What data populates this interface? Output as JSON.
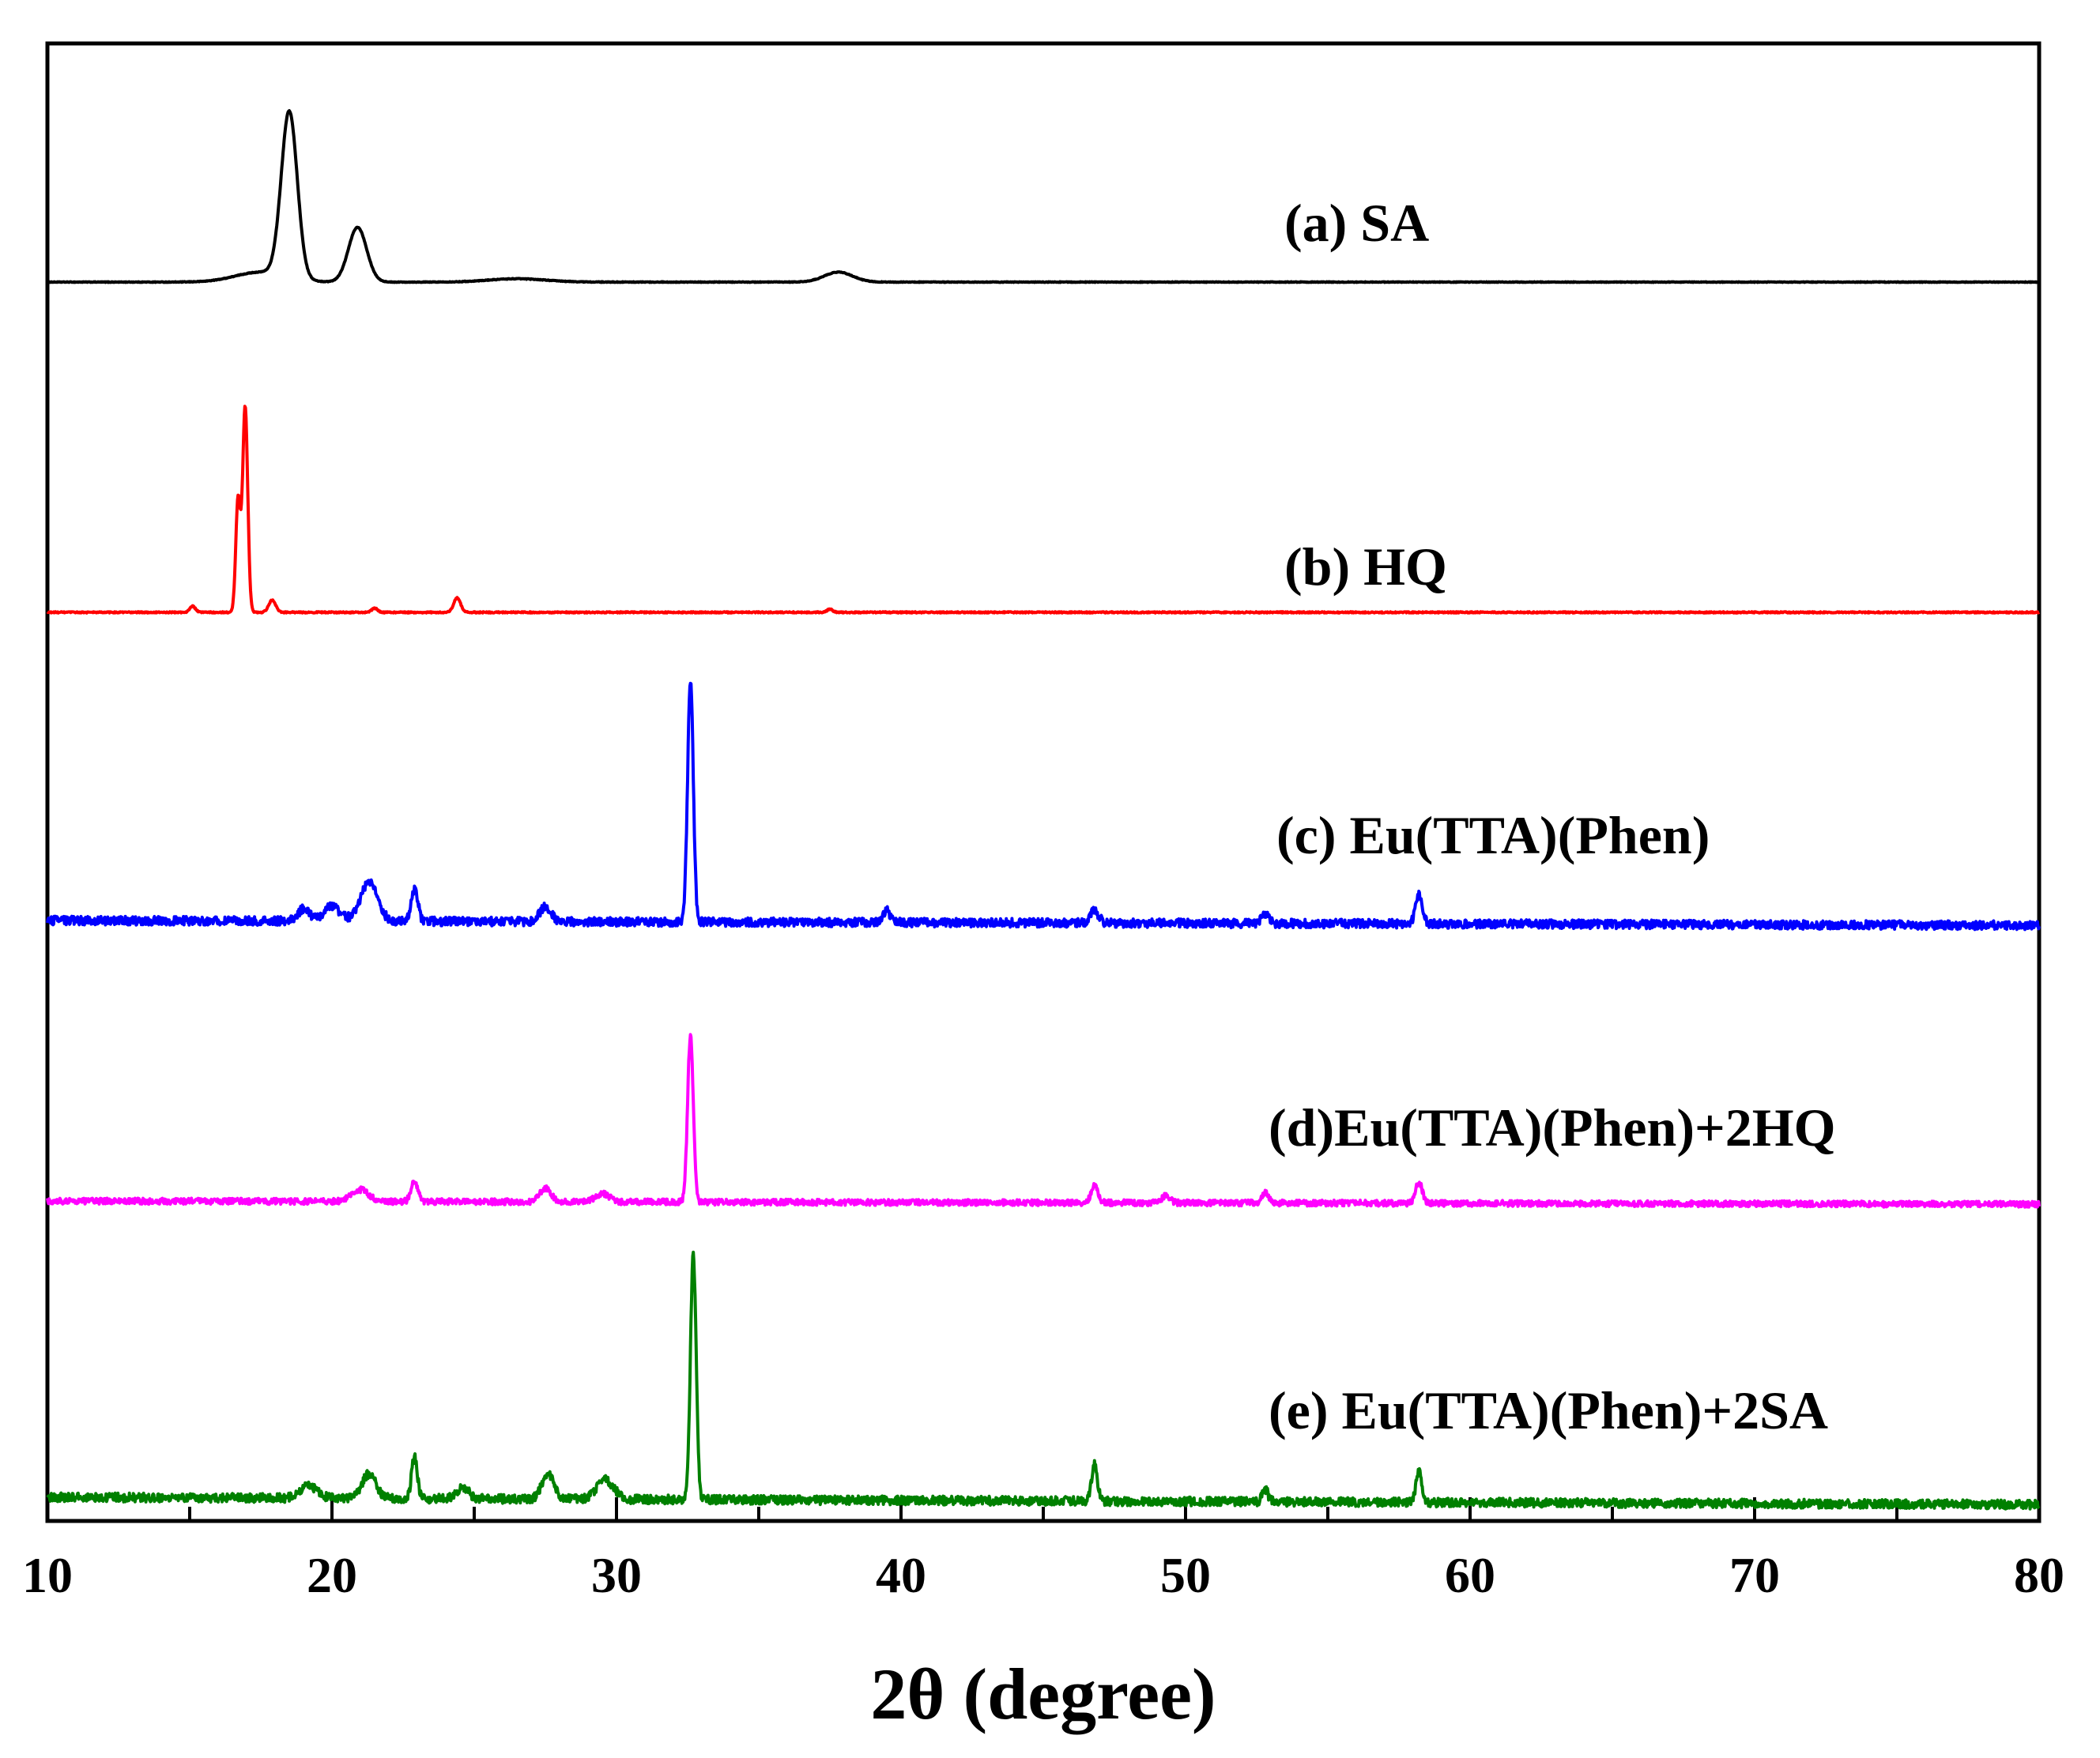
{
  "chart_data": {
    "type": "line",
    "title": "",
    "xlabel": "2θ (degree)",
    "ylabel": "",
    "xlim": [
      10,
      80
    ],
    "x_ticks": [
      10,
      20,
      30,
      40,
      50,
      60,
      70,
      80
    ],
    "x_tick_labels": [
      "10",
      "20",
      "30",
      "40",
      "50",
      "60",
      "70",
      "80"
    ],
    "y_ticks": false,
    "grid": false,
    "legend": "inline labels right of each trace",
    "series": [
      {
        "name": "(a) SA",
        "color": "#000000",
        "baseline": 0,
        "noise": 0.002,
        "slope": 0,
        "peaks": [
          [
            18.5,
            1.0,
            0.28
          ],
          [
            20.9,
            0.33,
            0.32
          ],
          [
            17.5,
            0.06,
            0.9
          ],
          [
            37.8,
            0.06,
            0.5
          ],
          [
            26.5,
            0.02,
            1.0
          ]
        ]
      },
      {
        "name": "(b) HQ",
        "color": "#ff0000",
        "baseline": 0,
        "noise": 0.003,
        "slope": 0,
        "peaks": [
          [
            16.95,
            1.0,
            0.09
          ],
          [
            16.7,
            0.55,
            0.08
          ],
          [
            17.9,
            0.06,
            0.12
          ],
          [
            24.4,
            0.07,
            0.12
          ],
          [
            15.1,
            0.03,
            0.1
          ],
          [
            21.5,
            0.02,
            0.1
          ],
          [
            37.5,
            0.015,
            0.1
          ]
        ]
      },
      {
        "name": "(c) Eu(TTA)(Phen)",
        "color": "#0000ff",
        "baseline": 0,
        "noise": 0.018,
        "slope": -0.02,
        "peaks": [
          [
            32.6,
            1.0,
            0.1
          ],
          [
            21.3,
            0.16,
            0.3
          ],
          [
            22.9,
            0.13,
            0.12
          ],
          [
            20.0,
            0.06,
            0.3
          ],
          [
            19.0,
            0.05,
            0.2
          ],
          [
            27.5,
            0.06,
            0.2
          ],
          [
            39.5,
            0.05,
            0.12
          ],
          [
            46.8,
            0.05,
            0.15
          ],
          [
            52.8,
            0.04,
            0.12
          ],
          [
            58.2,
            0.12,
            0.12
          ]
        ]
      },
      {
        "name": "(d)Eu(TTA)(Phen)+2HQ",
        "color": "#ff00ff",
        "baseline": 0,
        "noise": 0.018,
        "slope": -0.02,
        "peaks": [
          [
            32.6,
            1.0,
            0.1
          ],
          [
            21.0,
            0.07,
            0.3
          ],
          [
            22.9,
            0.12,
            0.12
          ],
          [
            27.5,
            0.08,
            0.2
          ],
          [
            29.5,
            0.05,
            0.25
          ],
          [
            46.8,
            0.1,
            0.12
          ],
          [
            52.8,
            0.06,
            0.12
          ],
          [
            58.2,
            0.13,
            0.12
          ],
          [
            49.3,
            0.04,
            0.15
          ]
        ]
      },
      {
        "name": "(e) Eu(TTA)(Phen)+2SA",
        "color": "#008000",
        "baseline": 0,
        "noise": 0.018,
        "slope": -0.03,
        "peaks": [
          [
            32.7,
            1.0,
            0.1
          ],
          [
            21.3,
            0.1,
            0.25
          ],
          [
            22.9,
            0.17,
            0.1
          ],
          [
            24.6,
            0.05,
            0.2
          ],
          [
            27.6,
            0.1,
            0.22
          ],
          [
            29.6,
            0.08,
            0.3
          ],
          [
            46.8,
            0.15,
            0.1
          ],
          [
            52.8,
            0.05,
            0.1
          ],
          [
            58.2,
            0.13,
            0.1
          ],
          [
            19.2,
            0.05,
            0.3
          ]
        ]
      }
    ]
  }
}
